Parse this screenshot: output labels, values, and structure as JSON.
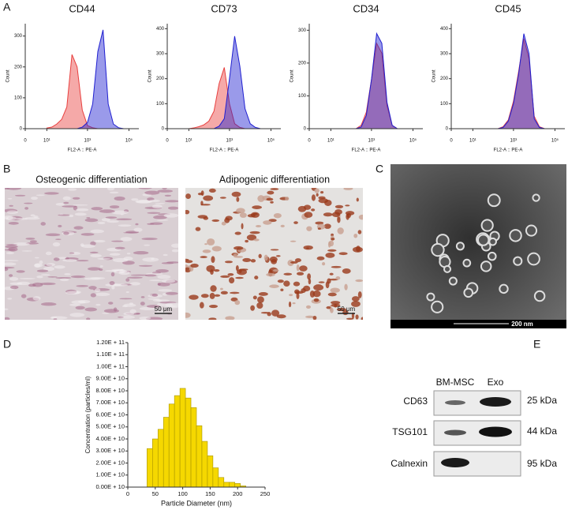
{
  "panel_labels": [
    "A",
    "B",
    "C",
    "D",
    "E"
  ],
  "chart_data": [
    {
      "type": "area",
      "title": "CD44",
      "xlabel": "FL2-A :: PE-A",
      "ylabel": "Count",
      "xscale": "symlog",
      "x": [
        10,
        18,
        32,
        56,
        100,
        178,
        316,
        562,
        1000,
        1778,
        3162,
        5623,
        10000,
        17783,
        31623,
        56234,
        100000
      ],
      "series": [
        {
          "color": "#e8403f",
          "values": [
            2,
            5,
            15,
            30,
            70,
            240,
            200,
            60,
            10,
            3,
            0,
            0,
            0,
            0,
            0,
            0,
            0
          ]
        },
        {
          "color": "#2020d0",
          "values": [
            0,
            0,
            0,
            0,
            0,
            0,
            0,
            5,
            20,
            80,
            250,
            320,
            80,
            15,
            3,
            0,
            0
          ]
        }
      ],
      "xlim": [
        0,
        300000
      ],
      "ylim": [
        0,
        340
      ],
      "xticks": [
        {
          "value": 0,
          "label": "0"
        },
        {
          "value": 10,
          "label": "10¹"
        },
        {
          "value": 1000,
          "label": "10³"
        },
        {
          "value": 100000,
          "label": "10⁵"
        }
      ],
      "yticks": [
        0,
        100,
        200,
        300
      ]
    },
    {
      "type": "area",
      "title": "CD73",
      "xlabel": "FL2-A :: PE-A",
      "ylabel": "Count",
      "xscale": "symlog",
      "x": [
        10,
        18,
        32,
        56,
        100,
        178,
        316,
        562,
        1000,
        1778,
        3162,
        5623,
        10000,
        17783,
        31623,
        56234,
        100000
      ],
      "series": [
        {
          "color": "#e8403f",
          "values": [
            0,
            3,
            8,
            15,
            30,
            70,
            180,
            245,
            100,
            20,
            5,
            0,
            0,
            0,
            0,
            0,
            0
          ]
        },
        {
          "color": "#2020d0",
          "values": [
            0,
            0,
            0,
            0,
            0,
            0,
            10,
            40,
            200,
            370,
            250,
            80,
            20,
            5,
            0,
            0,
            0
          ]
        }
      ],
      "xlim": [
        0,
        300000
      ],
      "ylim": [
        0,
        420
      ],
      "xticks": [
        {
          "value": 0,
          "label": "0"
        },
        {
          "value": 10,
          "label": "10¹"
        },
        {
          "value": 1000,
          "label": "10³"
        },
        {
          "value": 100000,
          "label": "10⁵"
        }
      ],
      "yticks": [
        0,
        100,
        200,
        300,
        400
      ]
    },
    {
      "type": "area",
      "title": "CD34",
      "xlabel": "FL2-A :: PE-A",
      "ylabel": "Count",
      "xscale": "symlog",
      "x": [
        10,
        18,
        32,
        56,
        100,
        178,
        316,
        562,
        1000,
        1778,
        3162,
        5623,
        10000,
        17783,
        31623,
        56234,
        100000
      ],
      "series": [
        {
          "color": "#e8403f",
          "values": [
            0,
            0,
            0,
            0,
            0,
            0,
            10,
            50,
            150,
            260,
            230,
            70,
            10,
            0,
            0,
            0,
            0
          ]
        },
        {
          "color": "#2020d0",
          "values": [
            0,
            0,
            0,
            0,
            0,
            0,
            5,
            40,
            150,
            290,
            260,
            80,
            10,
            0,
            0,
            0,
            0
          ]
        }
      ],
      "xlim": [
        0,
        300000
      ],
      "ylim": [
        0,
        320
      ],
      "xticks": [
        {
          "value": 0,
          "label": "0"
        },
        {
          "value": 10,
          "label": "10¹"
        },
        {
          "value": 1000,
          "label": "10³"
        },
        {
          "value": 100000,
          "label": "10⁵"
        }
      ],
      "yticks": [
        0,
        100,
        200,
        300
      ]
    },
    {
      "type": "area",
      "title": "CD45",
      "xlabel": "FL2-A :: PE-A",
      "ylabel": "Count",
      "xscale": "symlog",
      "x": [
        10,
        18,
        32,
        56,
        100,
        178,
        316,
        562,
        1000,
        1778,
        3162,
        5623,
        10000,
        17783,
        31623,
        56234,
        100000
      ],
      "series": [
        {
          "color": "#e8403f",
          "values": [
            0,
            0,
            0,
            0,
            0,
            0,
            8,
            35,
            110,
            230,
            360,
            280,
            50,
            8,
            0,
            0,
            0
          ]
        },
        {
          "color": "#2020d0",
          "values": [
            0,
            0,
            0,
            0,
            0,
            0,
            5,
            30,
            100,
            220,
            380,
            300,
            40,
            5,
            0,
            0,
            0
          ]
        }
      ],
      "xlim": [
        0,
        300000
      ],
      "ylim": [
        0,
        420
      ],
      "xticks": [
        {
          "value": 0,
          "label": "0"
        },
        {
          "value": 10,
          "label": "10¹"
        },
        {
          "value": 1000,
          "label": "10³"
        },
        {
          "value": 100000,
          "label": "10⁵"
        }
      ],
      "yticks": [
        0,
        100,
        200,
        300,
        400
      ]
    },
    {
      "type": "histogram",
      "xlabel": "Particle Diameter (nm)",
      "ylabel": "Concentration (particles/ml)",
      "color": "#f5d800",
      "bins": [
        35,
        45,
        55,
        65,
        75,
        85,
        95,
        105,
        115,
        125,
        135,
        145,
        155,
        165,
        175,
        185,
        195,
        205,
        215
      ],
      "values": [
        32000000000,
        40000000000,
        48000000000,
        58000000000,
        69000000000,
        76000000000,
        82000000000,
        74000000000,
        66000000000,
        51000000000,
        38000000000,
        26000000000,
        16000000000,
        8000000000,
        4000000000,
        4000000000,
        3000000000,
        1000000000
      ],
      "xlim": [
        0,
        250
      ],
      "xticks": [
        0,
        50,
        100,
        150,
        200,
        250
      ],
      "ylim": [
        0,
        120000000000
      ],
      "yticks": [
        {
          "value": 0,
          "label": "0.00E + 10"
        },
        {
          "value": 10000000000,
          "label": "1.00E + 10"
        },
        {
          "value": 20000000000,
          "label": "2.00E + 10"
        },
        {
          "value": 30000000000,
          "label": "3.00E + 10"
        },
        {
          "value": 40000000000,
          "label": "4.00E + 10"
        },
        {
          "value": 50000000000,
          "label": "5.00E + 10"
        },
        {
          "value": 60000000000,
          "label": "6.00E + 10"
        },
        {
          "value": 70000000000,
          "label": "7.00E + 10"
        },
        {
          "value": 80000000000,
          "label": "8.00E + 10"
        },
        {
          "value": 90000000000,
          "label": "9.00E + 10"
        },
        {
          "value": 100000000000,
          "label": "1.00E + 11"
        },
        {
          "value": 110000000000,
          "label": "1.10E + 11"
        },
        {
          "value": 120000000000,
          "label": "1.20E + 11"
        }
      ]
    }
  ],
  "images": [
    {
      "caption": "Osteogenic differentiation",
      "scale_bar": "50 μm"
    },
    {
      "caption": "Adipogenic differentiation",
      "scale_bar": "50 μm"
    }
  ],
  "tem": {
    "scale_bar": "200 nm"
  },
  "western_blot": {
    "columns": [
      "BM-MSC",
      "Exo"
    ],
    "rows": [
      {
        "label": "CD63",
        "size": "25 kDa"
      },
      {
        "label": "TSG101",
        "size": "44 kDa"
      },
      {
        "label": "Calnexin",
        "size": "95 kDa"
      }
    ]
  }
}
